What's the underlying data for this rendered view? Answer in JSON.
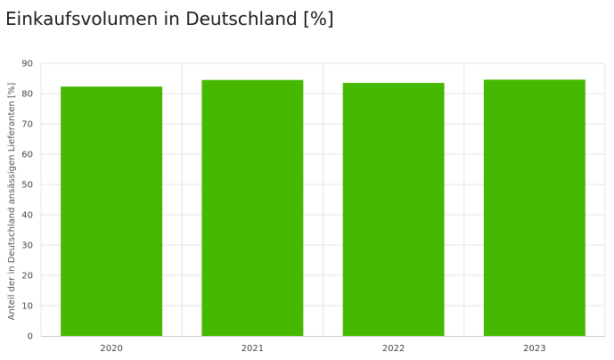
{
  "chart_data": {
    "type": "bar",
    "title": "Einkaufsvolumen in Deutschland [%]",
    "xlabel": "",
    "ylabel": "Anteil der in Deutschland ansässigen Lieferanten [%]",
    "categories": [
      "2020",
      "2021",
      "2022",
      "2023"
    ],
    "values": [
      82.3,
      84.5,
      83.5,
      84.6
    ],
    "ylim": [
      0,
      90
    ],
    "yticks": [
      0,
      10,
      20,
      30,
      40,
      50,
      60,
      70,
      80,
      90
    ],
    "grid": true,
    "legend": "none",
    "bar_color": "#46b800"
  },
  "colors": {
    "grid": "#e6e6e6",
    "axis": "#cccccc"
  }
}
